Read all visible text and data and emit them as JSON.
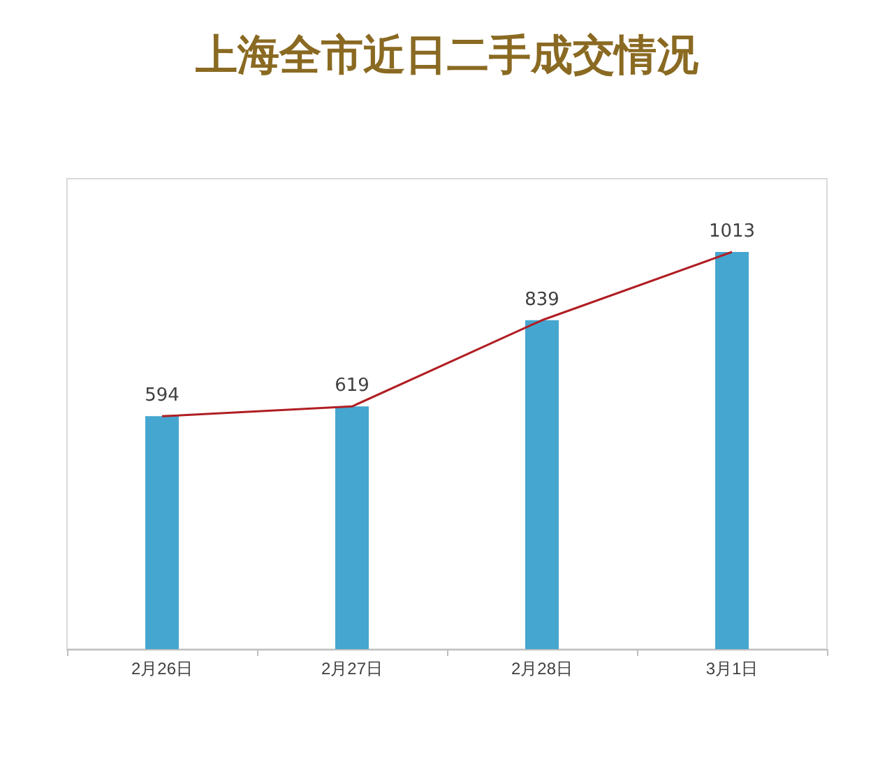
{
  "chart_data": {
    "type": "bar",
    "title": "上海全市近日二手成交情况",
    "categories": [
      "2月26日",
      "2月27日",
      "2月28日",
      "3月1日"
    ],
    "series": [
      {
        "color": "#45a6d0",
        "values": [
          594,
          619,
          839,
          1013
        ]
      },
      {
        "type": "line",
        "color": "#b01e23",
        "values": [
          594,
          619,
          839,
          1013
        ],
        "value_labels": [
          "594",
          "619",
          "839",
          "1013"
        ]
      }
    ],
    "grid": false,
    "marker": "none",
    "tick_labels": "x"
  }
}
